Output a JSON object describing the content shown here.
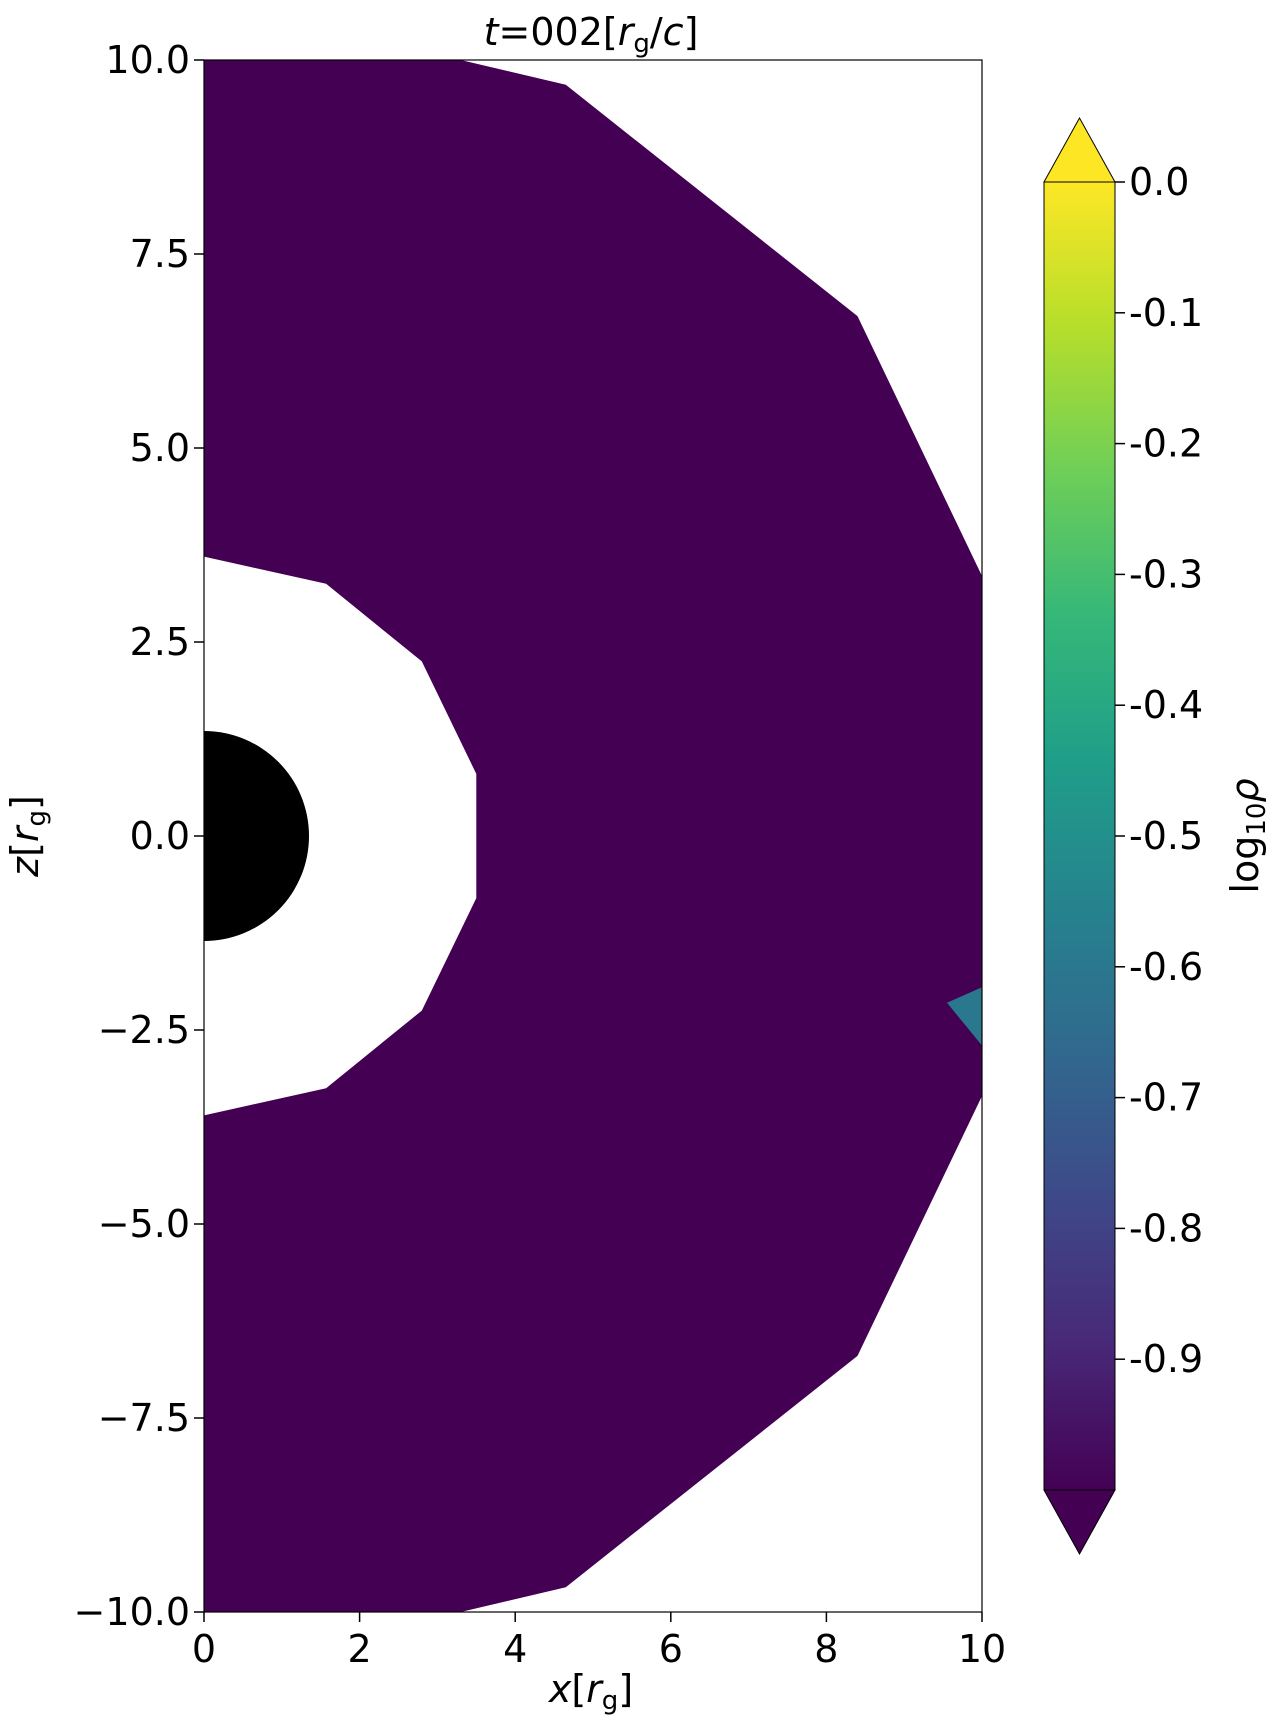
{
  "chart_data": {
    "type": "heatmap",
    "title": {
      "pre": "t",
      "mid": "=002[",
      "r": "r",
      "sub": "g",
      "slash": "/",
      "c": "c",
      "post": "]"
    },
    "xlabel": {
      "var": "x",
      "open": "[",
      "r": "r",
      "sub": "g",
      "close": "]"
    },
    "ylabel": {
      "var": "z",
      "open": "[",
      "r": "r",
      "sub": "g",
      "close": "]"
    },
    "xlim": [
      0,
      10
    ],
    "ylim": [
      -10,
      10
    ],
    "x_ticks": [
      "0",
      "2",
      "4",
      "6",
      "8",
      "10"
    ],
    "y_ticks": [
      "10.0",
      "7.5",
      "5.0",
      "2.5",
      "0.0",
      "−2.5",
      "−5.0",
      "−7.5",
      "−10.0"
    ],
    "x_tick_values": [
      0,
      2,
      4,
      6,
      8,
      10
    ],
    "y_tick_values": [
      10,
      7.5,
      5,
      2.5,
      0,
      -2.5,
      -5,
      -7.5,
      -10
    ],
    "colorbar": {
      "label": {
        "pre": "log",
        "sub": "10",
        "sym": "ρ"
      },
      "range": [
        -1.0,
        0.0
      ],
      "extend": "both",
      "ticks": [
        "0.0",
        "-0.1",
        "-0.2",
        "-0.3",
        "-0.4",
        "-0.5",
        "-0.6",
        "-0.7",
        "-0.8",
        "-0.9"
      ],
      "tick_values": [
        0.0,
        -0.1,
        -0.2,
        -0.3,
        -0.4,
        -0.5,
        -0.6,
        -0.7,
        -0.8,
        -0.9
      ],
      "colormap": "viridis",
      "stops": [
        "#440154",
        "#482878",
        "#3e4989",
        "#31688e",
        "#26828e",
        "#1f9e89",
        "#35b779",
        "#6ece58",
        "#b5de2b",
        "#fde725"
      ]
    },
    "field": {
      "fill_value": -1.0,
      "fill_color": "#440154",
      "inner_boundary": [
        [
          0,
          3.6
        ],
        [
          1.57,
          3.25
        ],
        [
          2.8,
          2.25
        ],
        [
          3.5,
          0.8
        ],
        [
          3.5,
          -0.8
        ],
        [
          2.8,
          -2.25
        ],
        [
          1.57,
          -3.25
        ],
        [
          0,
          -3.6
        ]
      ],
      "outer_boundary": [
        [
          0,
          10
        ],
        [
          3.3,
          10
        ],
        [
          4.65,
          9.68
        ],
        [
          8.4,
          6.7
        ],
        [
          10,
          3.35
        ],
        [
          10,
          -3.35
        ],
        [
          8.4,
          -6.7
        ],
        [
          4.65,
          -9.68
        ],
        [
          3.3,
          -10
        ],
        [
          0,
          -10
        ]
      ],
      "feature": {
        "value": -0.55,
        "color": "#2a788e",
        "points": [
          [
            9.55,
            -2.15
          ],
          [
            10,
            -1.95
          ],
          [
            10,
            -2.7
          ]
        ]
      }
    },
    "horizon": {
      "radius": 1.35,
      "color": "#000000"
    }
  }
}
